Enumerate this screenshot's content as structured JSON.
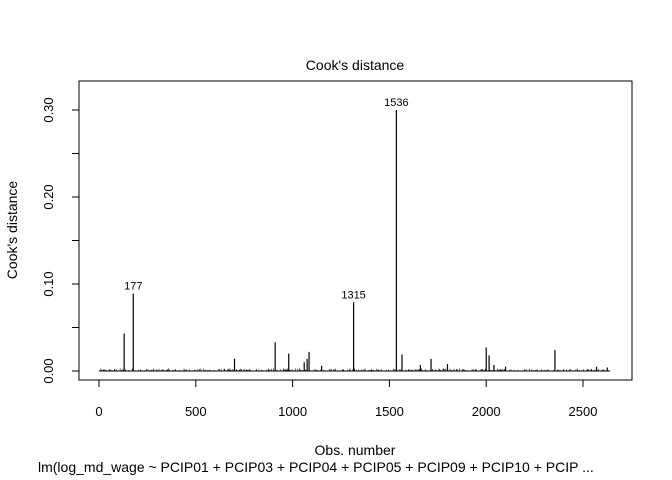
{
  "chart_data": {
    "type": "bar",
    "style": "spike",
    "title": "Cook's distance",
    "xlabel": "Obs. number",
    "ylabel": "Cook's distance",
    "subtitle": "lm(log_md_wage ~ PCIP01 + PCIP03 + PCIP04 + PCIP05 + PCIP09 + PCIP10 + PCIP ...",
    "xlim": [
      0,
      2640
    ],
    "ylim": [
      0,
      0.32
    ],
    "x_ticks": [
      0,
      500,
      1000,
      1500,
      2000,
      2500
    ],
    "x_tick_labels": [
      "0",
      "500",
      "1000",
      "1500",
      "2000",
      "2500"
    ],
    "y_ticks": [
      0.0,
      0.1,
      0.2,
      0.3
    ],
    "y_tick_labels": [
      "0.00",
      "0.10",
      "0.20",
      "0.30"
    ],
    "y_minor_ticks": [
      0.05,
      0.15,
      0.25
    ],
    "n_obs": 2640,
    "baseline_noise_max": 0.003,
    "notable_points": [
      {
        "x": 130,
        "y": 0.043
      },
      {
        "x": 177,
        "y": 0.089,
        "label": "177"
      },
      {
        "x": 700,
        "y": 0.014
      },
      {
        "x": 910,
        "y": 0.033
      },
      {
        "x": 980,
        "y": 0.02
      },
      {
        "x": 1060,
        "y": 0.01
      },
      {
        "x": 1075,
        "y": 0.014
      },
      {
        "x": 1085,
        "y": 0.022
      },
      {
        "x": 1150,
        "y": 0.006
      },
      {
        "x": 1315,
        "y": 0.079,
        "label": "1315"
      },
      {
        "x": 1536,
        "y": 0.3,
        "label": "1536"
      },
      {
        "x": 1565,
        "y": 0.019
      },
      {
        "x": 1660,
        "y": 0.007
      },
      {
        "x": 1715,
        "y": 0.014
      },
      {
        "x": 1800,
        "y": 0.008
      },
      {
        "x": 2000,
        "y": 0.027
      },
      {
        "x": 2015,
        "y": 0.018
      },
      {
        "x": 2040,
        "y": 0.007
      },
      {
        "x": 2100,
        "y": 0.005
      },
      {
        "x": 2355,
        "y": 0.024
      },
      {
        "x": 2570,
        "y": 0.005
      },
      {
        "x": 2625,
        "y": 0.004
      }
    ]
  }
}
